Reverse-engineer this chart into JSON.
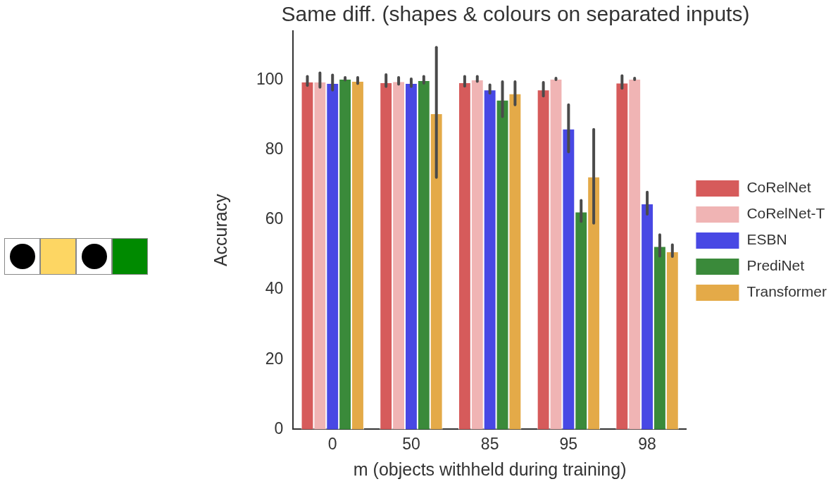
{
  "chart_data": {
    "type": "bar",
    "title": "Same diff. (shapes & colours on separated inputs)",
    "xlabel": "m (objects withheld during training)",
    "ylabel": "Accuracy",
    "categories": [
      "0",
      "50",
      "85",
      "95",
      "98"
    ],
    "series": [
      {
        "name": "CoRelNet",
        "color": "#d65b5b",
        "values": [
          99.5,
          99.3,
          99.3,
          97.2,
          99.2
        ],
        "errors": [
          [
            98.4,
            101.0
          ],
          [
            98.1,
            101.5
          ],
          [
            98.2,
            101.0
          ],
          [
            95.4,
            99.3
          ],
          [
            97.6,
            101.2
          ]
        ]
      },
      {
        "name": "CoRelNet-T",
        "color": "#f0b4b4",
        "values": [
          99.5,
          99.6,
          100.1,
          100.3,
          100.3
        ],
        "errors": [
          [
            97.9,
            102.0
          ],
          [
            98.8,
            100.7
          ],
          [
            99.6,
            101.0
          ],
          [
            100.1,
            100.5
          ],
          [
            100.1,
            100.5
          ]
        ]
      },
      {
        "name": "ESBN",
        "color": "#4848e4",
        "values": [
          99.1,
          99.1,
          97.2,
          86.0,
          64.6
        ],
        "errors": [
          [
            97.1,
            101.4
          ],
          [
            98.1,
            100.3
          ],
          [
            96.2,
            98.6
          ],
          [
            79.4,
            92.9
          ],
          [
            61.6,
            67.9
          ]
        ]
      },
      {
        "name": "PrediNet",
        "color": "#3a8a3a",
        "values": [
          100.3,
          99.9,
          94.3,
          62.3,
          52.4
        ],
        "errors": [
          [
            100.0,
            100.7
          ],
          [
            99.1,
            101.0
          ],
          [
            89.5,
            99.5
          ],
          [
            59.5,
            65.5
          ],
          [
            49.6,
            55.7
          ]
        ]
      },
      {
        "name": "Transformer",
        "color": "#e4aa48",
        "values": [
          99.7,
          90.4,
          96.1,
          72.3,
          50.9
        ],
        "errors": [
          [
            99.0,
            100.7
          ],
          [
            72.1,
            109.3
          ],
          [
            92.9,
            99.5
          ],
          [
            59.0,
            85.8
          ],
          [
            49.5,
            52.8
          ]
        ]
      }
    ],
    "ylim": [
      0,
      114
    ],
    "yticks": [
      0,
      20,
      40,
      60,
      80,
      100
    ],
    "legend": "right"
  }
}
